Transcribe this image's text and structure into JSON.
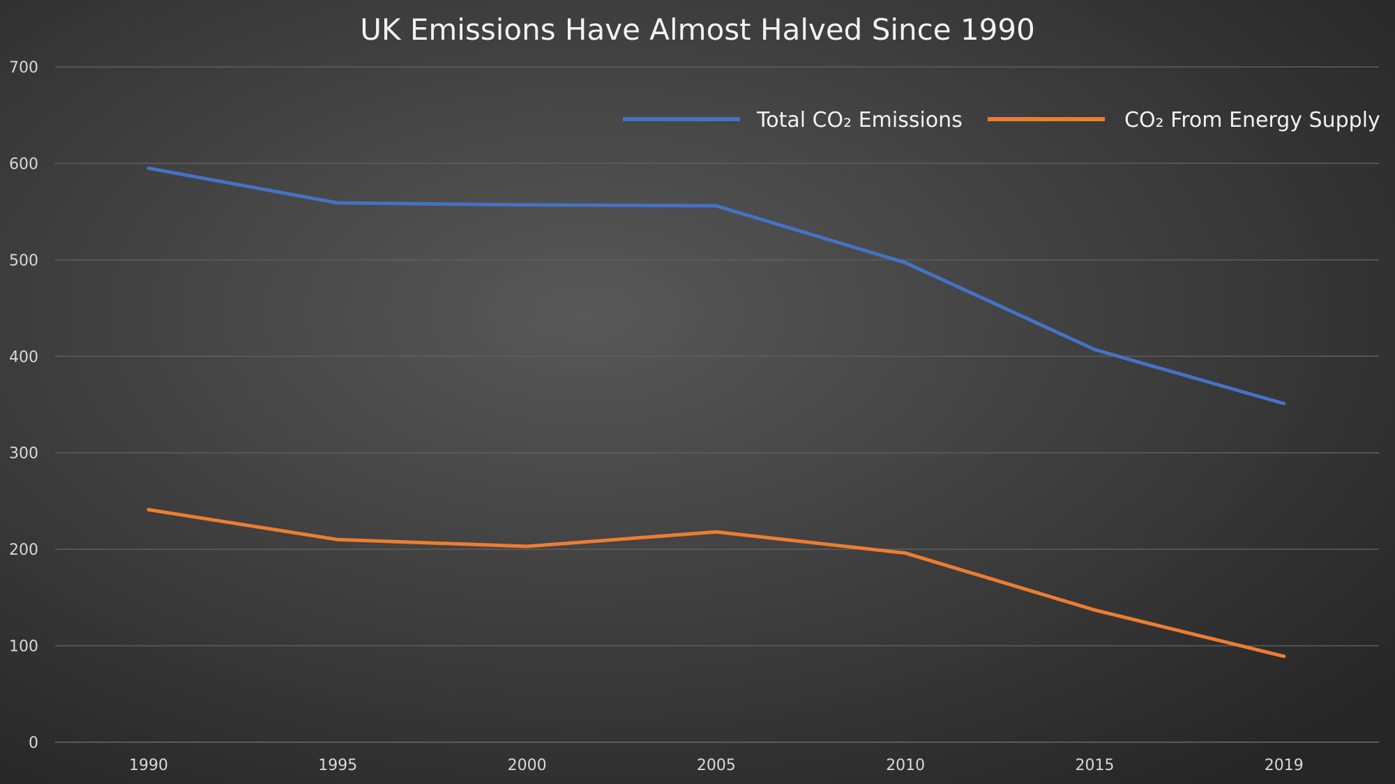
{
  "chart_data": {
    "type": "line",
    "title": "UK Emissions Have Almost Halved Since 1990",
    "categories": [
      "1990",
      "1995",
      "2000",
      "2005",
      "2010",
      "2015",
      "2019"
    ],
    "series": [
      {
        "name": "Total CO₂ Emissions",
        "color": "#4472C4",
        "values": [
          595,
          559,
          557,
          556,
          497,
          407,
          351
        ]
      },
      {
        "name": "CO₂ From Energy Supply",
        "color": "#ED7D31",
        "values": [
          241,
          210,
          203,
          218,
          196,
          137,
          89
        ]
      }
    ],
    "ylim": [
      0,
      700
    ],
    "yticks": [
      "0",
      "100",
      "200",
      "300",
      "400",
      "500",
      "600",
      "700"
    ],
    "grid": true,
    "legend": "top-right",
    "background": "dark radial gradient"
  }
}
